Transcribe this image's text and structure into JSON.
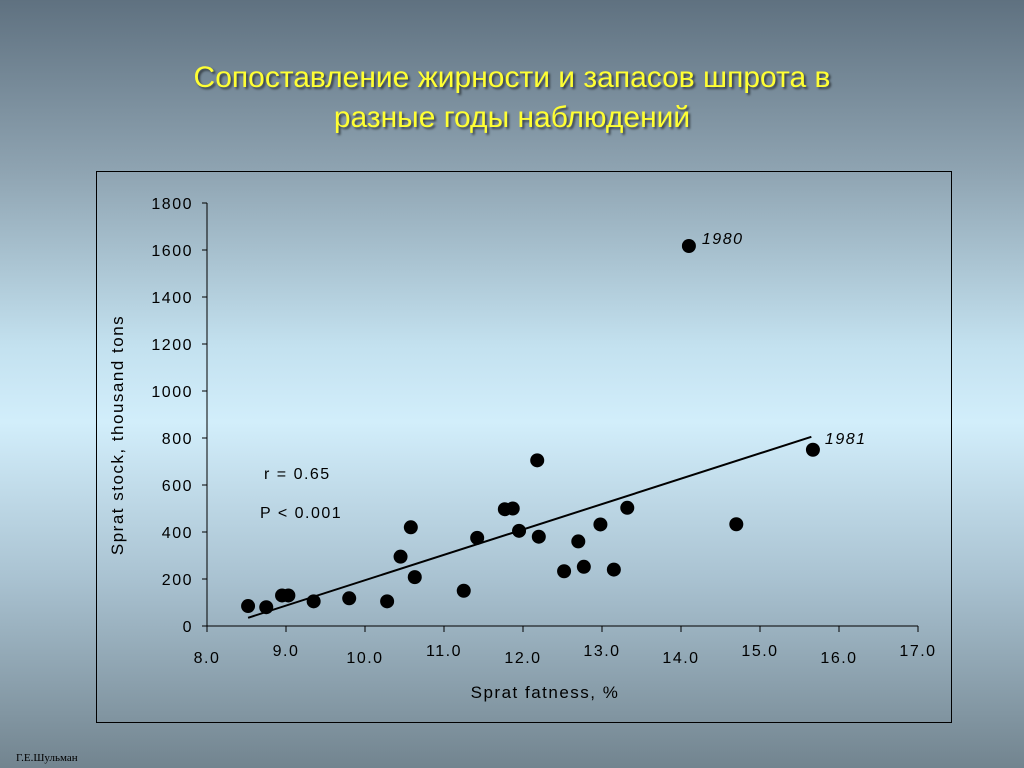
{
  "slide": {
    "title_line1": "Сопоставление жирности и запасов шпрота в",
    "title_line2": "разные годы наблюдений",
    "author": "Г.Е.Шульман",
    "colors": {
      "title": "#ffff33",
      "marker": "#000000",
      "trendline": "#000000"
    }
  },
  "chart_data": {
    "type": "scatter",
    "title": "",
    "xlabel": "Sprat fatness, %",
    "ylabel": "Sprat stock, thousand tons",
    "xlim": [
      8.0,
      17.0
    ],
    "ylim": [
      0,
      1800
    ],
    "x_ticks": [
      "8.0",
      "9.0",
      "10.0",
      "11.0",
      "12.0",
      "13.0",
      "14.0",
      "15.0",
      "16.0",
      "17.0"
    ],
    "y_ticks": [
      "0",
      "200",
      "400",
      "600",
      "800",
      "1000",
      "1200",
      "1400",
      "1600",
      "1800"
    ],
    "grid": false,
    "legend": "none",
    "points": [
      {
        "x": 8.52,
        "y": 85
      },
      {
        "x": 8.75,
        "y": 80
      },
      {
        "x": 8.95,
        "y": 130
      },
      {
        "x": 9.03,
        "y": 130
      },
      {
        "x": 9.35,
        "y": 105
      },
      {
        "x": 9.8,
        "y": 118
      },
      {
        "x": 10.28,
        "y": 105
      },
      {
        "x": 10.45,
        "y": 295
      },
      {
        "x": 10.58,
        "y": 420
      },
      {
        "x": 10.63,
        "y": 208
      },
      {
        "x": 11.25,
        "y": 150
      },
      {
        "x": 11.42,
        "y": 375
      },
      {
        "x": 11.77,
        "y": 497
      },
      {
        "x": 11.87,
        "y": 500
      },
      {
        "x": 11.95,
        "y": 405
      },
      {
        "x": 12.18,
        "y": 705
      },
      {
        "x": 12.2,
        "y": 380
      },
      {
        "x": 12.52,
        "y": 233
      },
      {
        "x": 12.7,
        "y": 360
      },
      {
        "x": 12.77,
        "y": 252
      },
      {
        "x": 12.98,
        "y": 432
      },
      {
        "x": 13.15,
        "y": 240
      },
      {
        "x": 13.32,
        "y": 503
      },
      {
        "x": 14.1,
        "y": 1617
      },
      {
        "x": 14.7,
        "y": 433
      },
      {
        "x": 15.67,
        "y": 750
      }
    ],
    "trendline": {
      "x1": 8.52,
      "y1": 35,
      "x2": 15.65,
      "y2": 805
    },
    "annotations": {
      "year_1980": {
        "text": "1980",
        "x": 14.1,
        "y": 1617
      },
      "year_1981": {
        "text": "1981",
        "x": 15.67,
        "y": 750
      },
      "r_text": "r = 0.65",
      "p_text": "P < 0.001"
    }
  }
}
